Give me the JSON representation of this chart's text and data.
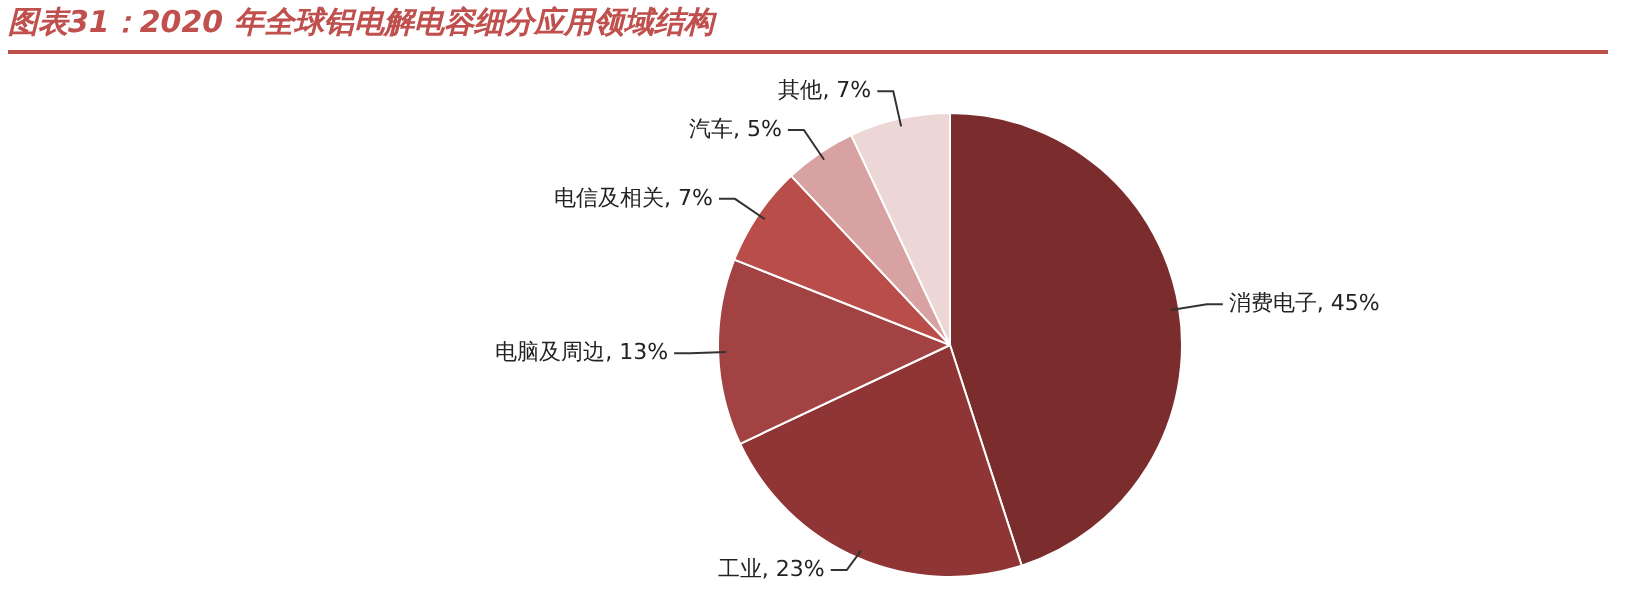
{
  "chart_data": {
    "type": "pie",
    "title": "图表31：2020 年全球铝电解电容细分应用领域结构",
    "categories": [
      "消费电子",
      "工业",
      "电脑及周边",
      "电信及相关",
      "汽车",
      "其他"
    ],
    "values": [
      45,
      23,
      13,
      7,
      5,
      7
    ],
    "value_labels": [
      "45%",
      "23%",
      "13%",
      "7%",
      "5%",
      "7%"
    ],
    "colors": [
      "#7b2d2d",
      "#8f3535",
      "#a34242",
      "#b84d4a",
      "#d8a2a2",
      "#ecd6d6"
    ],
    "legend": false
  }
}
